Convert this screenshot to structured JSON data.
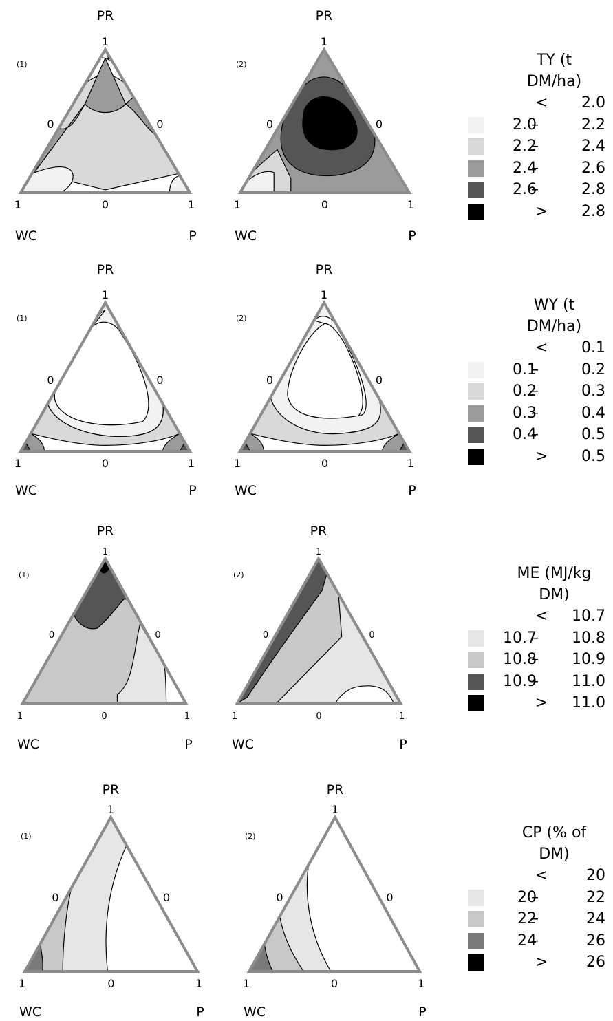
{
  "corner_labels": {
    "top": "PR",
    "left": "WC",
    "right": "P"
  },
  "tick_labels": {
    "one": "1",
    "zero": "0"
  },
  "rows": [
    {
      "variable": "TY",
      "legend": {
        "title_line1": "TY (t",
        "title_line2": "DM/ha)",
        "items": [
          {
            "lo": "",
            "op": "<",
            "hi": "2.0",
            "color": "#ffffff"
          },
          {
            "lo": "2.0",
            "op": "–",
            "hi": "2.2",
            "color": "#f2f2f2"
          },
          {
            "lo": "2.2",
            "op": "–",
            "hi": "2.4",
            "color": "#d9d9d9"
          },
          {
            "lo": "2.4",
            "op": "–",
            "hi": "2.6",
            "color": "#9b9b9b"
          },
          {
            "lo": "2.6",
            "op": "–",
            "hi": "2.8",
            "color": "#555555"
          },
          {
            "lo": "",
            "op": ">",
            "hi": "2.8",
            "color": "#000000"
          }
        ]
      },
      "panels": [
        {
          "label": "(1)"
        },
        {
          "label": "(2)"
        }
      ]
    },
    {
      "variable": "WY",
      "legend": {
        "title_line1": "WY (t",
        "title_line2": "DM/ha)",
        "items": [
          {
            "lo": "",
            "op": "<",
            "hi": "0.1",
            "color": "#ffffff"
          },
          {
            "lo": "0.1",
            "op": "–",
            "hi": "0.2",
            "color": "#f2f2f2"
          },
          {
            "lo": "0.2",
            "op": "–",
            "hi": "0.3",
            "color": "#d9d9d9"
          },
          {
            "lo": "0.3",
            "op": "–",
            "hi": "0.4",
            "color": "#9b9b9b"
          },
          {
            "lo": "0.4",
            "op": "–",
            "hi": "0.5",
            "color": "#555555"
          },
          {
            "lo": "",
            "op": ">",
            "hi": "0.5",
            "color": "#000000"
          }
        ]
      },
      "panels": [
        {
          "label": "(1)"
        },
        {
          "label": "(2)"
        }
      ]
    },
    {
      "variable": "ME",
      "legend": {
        "title_line1": "ME (MJ/kg",
        "title_line2": "DM)",
        "items": [
          {
            "lo": "",
            "op": "<",
            "hi": "10.7",
            "color": "#ffffff"
          },
          {
            "lo": "10.7",
            "op": "–",
            "hi": "10.8",
            "color": "#e6e6e6"
          },
          {
            "lo": "10.8",
            "op": "–",
            "hi": "10.9",
            "color": "#c8c8c8"
          },
          {
            "lo": "10.9",
            "op": "–",
            "hi": "11.0",
            "color": "#555555"
          },
          {
            "lo": "",
            "op": ">",
            "hi": "11.0",
            "color": "#000000"
          }
        ]
      },
      "panels": [
        {
          "label": "(1)"
        },
        {
          "label": "(2)"
        }
      ]
    },
    {
      "variable": "CP",
      "legend": {
        "title_line1": "CP (% of",
        "title_line2": "DM)",
        "items": [
          {
            "lo": "",
            "op": "<",
            "hi": "20",
            "color": "#ffffff"
          },
          {
            "lo": "20",
            "op": "–",
            "hi": "22",
            "color": "#e6e6e6"
          },
          {
            "lo": "22",
            "op": "–",
            "hi": "24",
            "color": "#c8c8c8"
          },
          {
            "lo": "24",
            "op": "–",
            "hi": "26",
            "color": "#7a7a7a"
          },
          {
            "lo": "",
            "op": ">",
            "hi": "26",
            "color": "#000000"
          }
        ]
      },
      "panels": [
        {
          "label": "(1)"
        },
        {
          "label": "(2)"
        }
      ]
    }
  ],
  "chart_data": [
    {
      "type": "heatmap",
      "title": "",
      "variable": "TY",
      "panel": "(1)",
      "axes": [
        "PR",
        "WC",
        "P"
      ],
      "range": [
        0,
        1
      ],
      "regions": [
        {
          "level": "2.2 – 2.4",
          "area": "most of the simplex"
        },
        {
          "level": "2.4 – 2.6",
          "area": "left edge band near PR–WC"
        },
        {
          "level": "2.4 – 2.6",
          "area": "right edge band near PR–P"
        },
        {
          "level": "2.0 – 2.2",
          "area": "WC corner"
        },
        {
          "level": "2.0 – 2.2",
          "area": "P corner"
        },
        {
          "level": "2.0 – 2.2",
          "area": "PR apex"
        }
      ]
    },
    {
      "type": "heatmap",
      "title": "",
      "variable": "TY",
      "panel": "(2)",
      "axes": [
        "PR",
        "WC",
        "P"
      ],
      "range": [
        0,
        1
      ],
      "regions": [
        {
          "level": "2.4 – 2.6",
          "area": "outer band along all edges"
        },
        {
          "level": "2.6 – 2.8",
          "area": "central region"
        },
        {
          "level": "> 2.8",
          "area": "centre"
        },
        {
          "level": "2.2 – 2.4",
          "area": "near WC corner"
        },
        {
          "level": "2.0 – 2.2",
          "area": "WC corner"
        }
      ]
    },
    {
      "type": "heatmap",
      "title": "",
      "variable": "WY",
      "panel": "(1)",
      "axes": [
        "PR",
        "WC",
        "P"
      ],
      "range": [
        0,
        1
      ],
      "regions": [
        {
          "level": "< 0.1",
          "area": "centre"
        },
        {
          "level": "0.1 – 0.2",
          "area": "ring around centre"
        },
        {
          "level": "0.2 – 0.3",
          "area": "band near bottom"
        },
        {
          "level": "0.3 – 0.4",
          "area": "WC and P corners"
        },
        {
          "level": "0.4 – 0.5",
          "area": "extreme WC and P corners"
        }
      ]
    },
    {
      "type": "heatmap",
      "title": "",
      "variable": "WY",
      "panel": "(2)",
      "axes": [
        "PR",
        "WC",
        "P"
      ],
      "range": [
        0,
        1
      ],
      "regions": [
        {
          "level": "< 0.1",
          "area": "centre"
        },
        {
          "level": "0.1 – 0.2",
          "area": "ring around centre"
        },
        {
          "level": "0.2 – 0.3",
          "area": "band near bottom"
        },
        {
          "level": "0.3 – 0.4",
          "area": "WC and P corners"
        },
        {
          "level": "0.4 – 0.5",
          "area": "extreme WC and P corners"
        }
      ]
    },
    {
      "type": "heatmap",
      "title": "",
      "variable": "ME",
      "panel": "(1)",
      "axes": [
        "PR",
        "WC",
        "P"
      ],
      "range": [
        0,
        1
      ],
      "regions": [
        {
          "level": "10.8 – 10.9",
          "area": "most of the simplex"
        },
        {
          "level": "10.9 – 11.0",
          "area": "upper region below PR apex"
        },
        {
          "level": "> 11.0",
          "area": "PR apex"
        },
        {
          "level": "10.7 – 10.8",
          "area": "right side toward P"
        },
        {
          "level": "< 10.7",
          "area": "P corner"
        }
      ]
    },
    {
      "type": "heatmap",
      "title": "",
      "variable": "ME",
      "panel": "(2)",
      "axes": [
        "PR",
        "WC",
        "P"
      ],
      "range": [
        0,
        1
      ],
      "regions": [
        {
          "level": "10.9 – 11.0",
          "area": "band along PR–WC edge"
        },
        {
          "level": "10.8 – 10.9",
          "area": "diagonal band"
        },
        {
          "level": "10.7 – 10.8",
          "area": "right half"
        },
        {
          "level": "< 10.7",
          "area": "near P corner"
        }
      ]
    },
    {
      "type": "heatmap",
      "title": "",
      "variable": "CP",
      "panel": "(1)",
      "axes": [
        "PR",
        "WC",
        "P"
      ],
      "range": [
        0,
        1
      ],
      "regions": [
        {
          "level": "< 20",
          "area": "right part toward P"
        },
        {
          "level": "20 – 22",
          "area": "central band"
        },
        {
          "level": "22 – 24",
          "area": "left band"
        },
        {
          "level": "24 – 26",
          "area": "WC corner"
        }
      ]
    },
    {
      "type": "heatmap",
      "title": "",
      "variable": "CP",
      "panel": "(2)",
      "axes": [
        "PR",
        "WC",
        "P"
      ],
      "range": [
        0,
        1
      ],
      "regions": [
        {
          "level": "< 20",
          "area": "most of the simplex"
        },
        {
          "level": "20 – 22",
          "area": "band near WC"
        },
        {
          "level": "22 – 24",
          "area": "narrower band near WC"
        },
        {
          "level": "24 – 26",
          "area": "WC corner"
        }
      ]
    }
  ]
}
